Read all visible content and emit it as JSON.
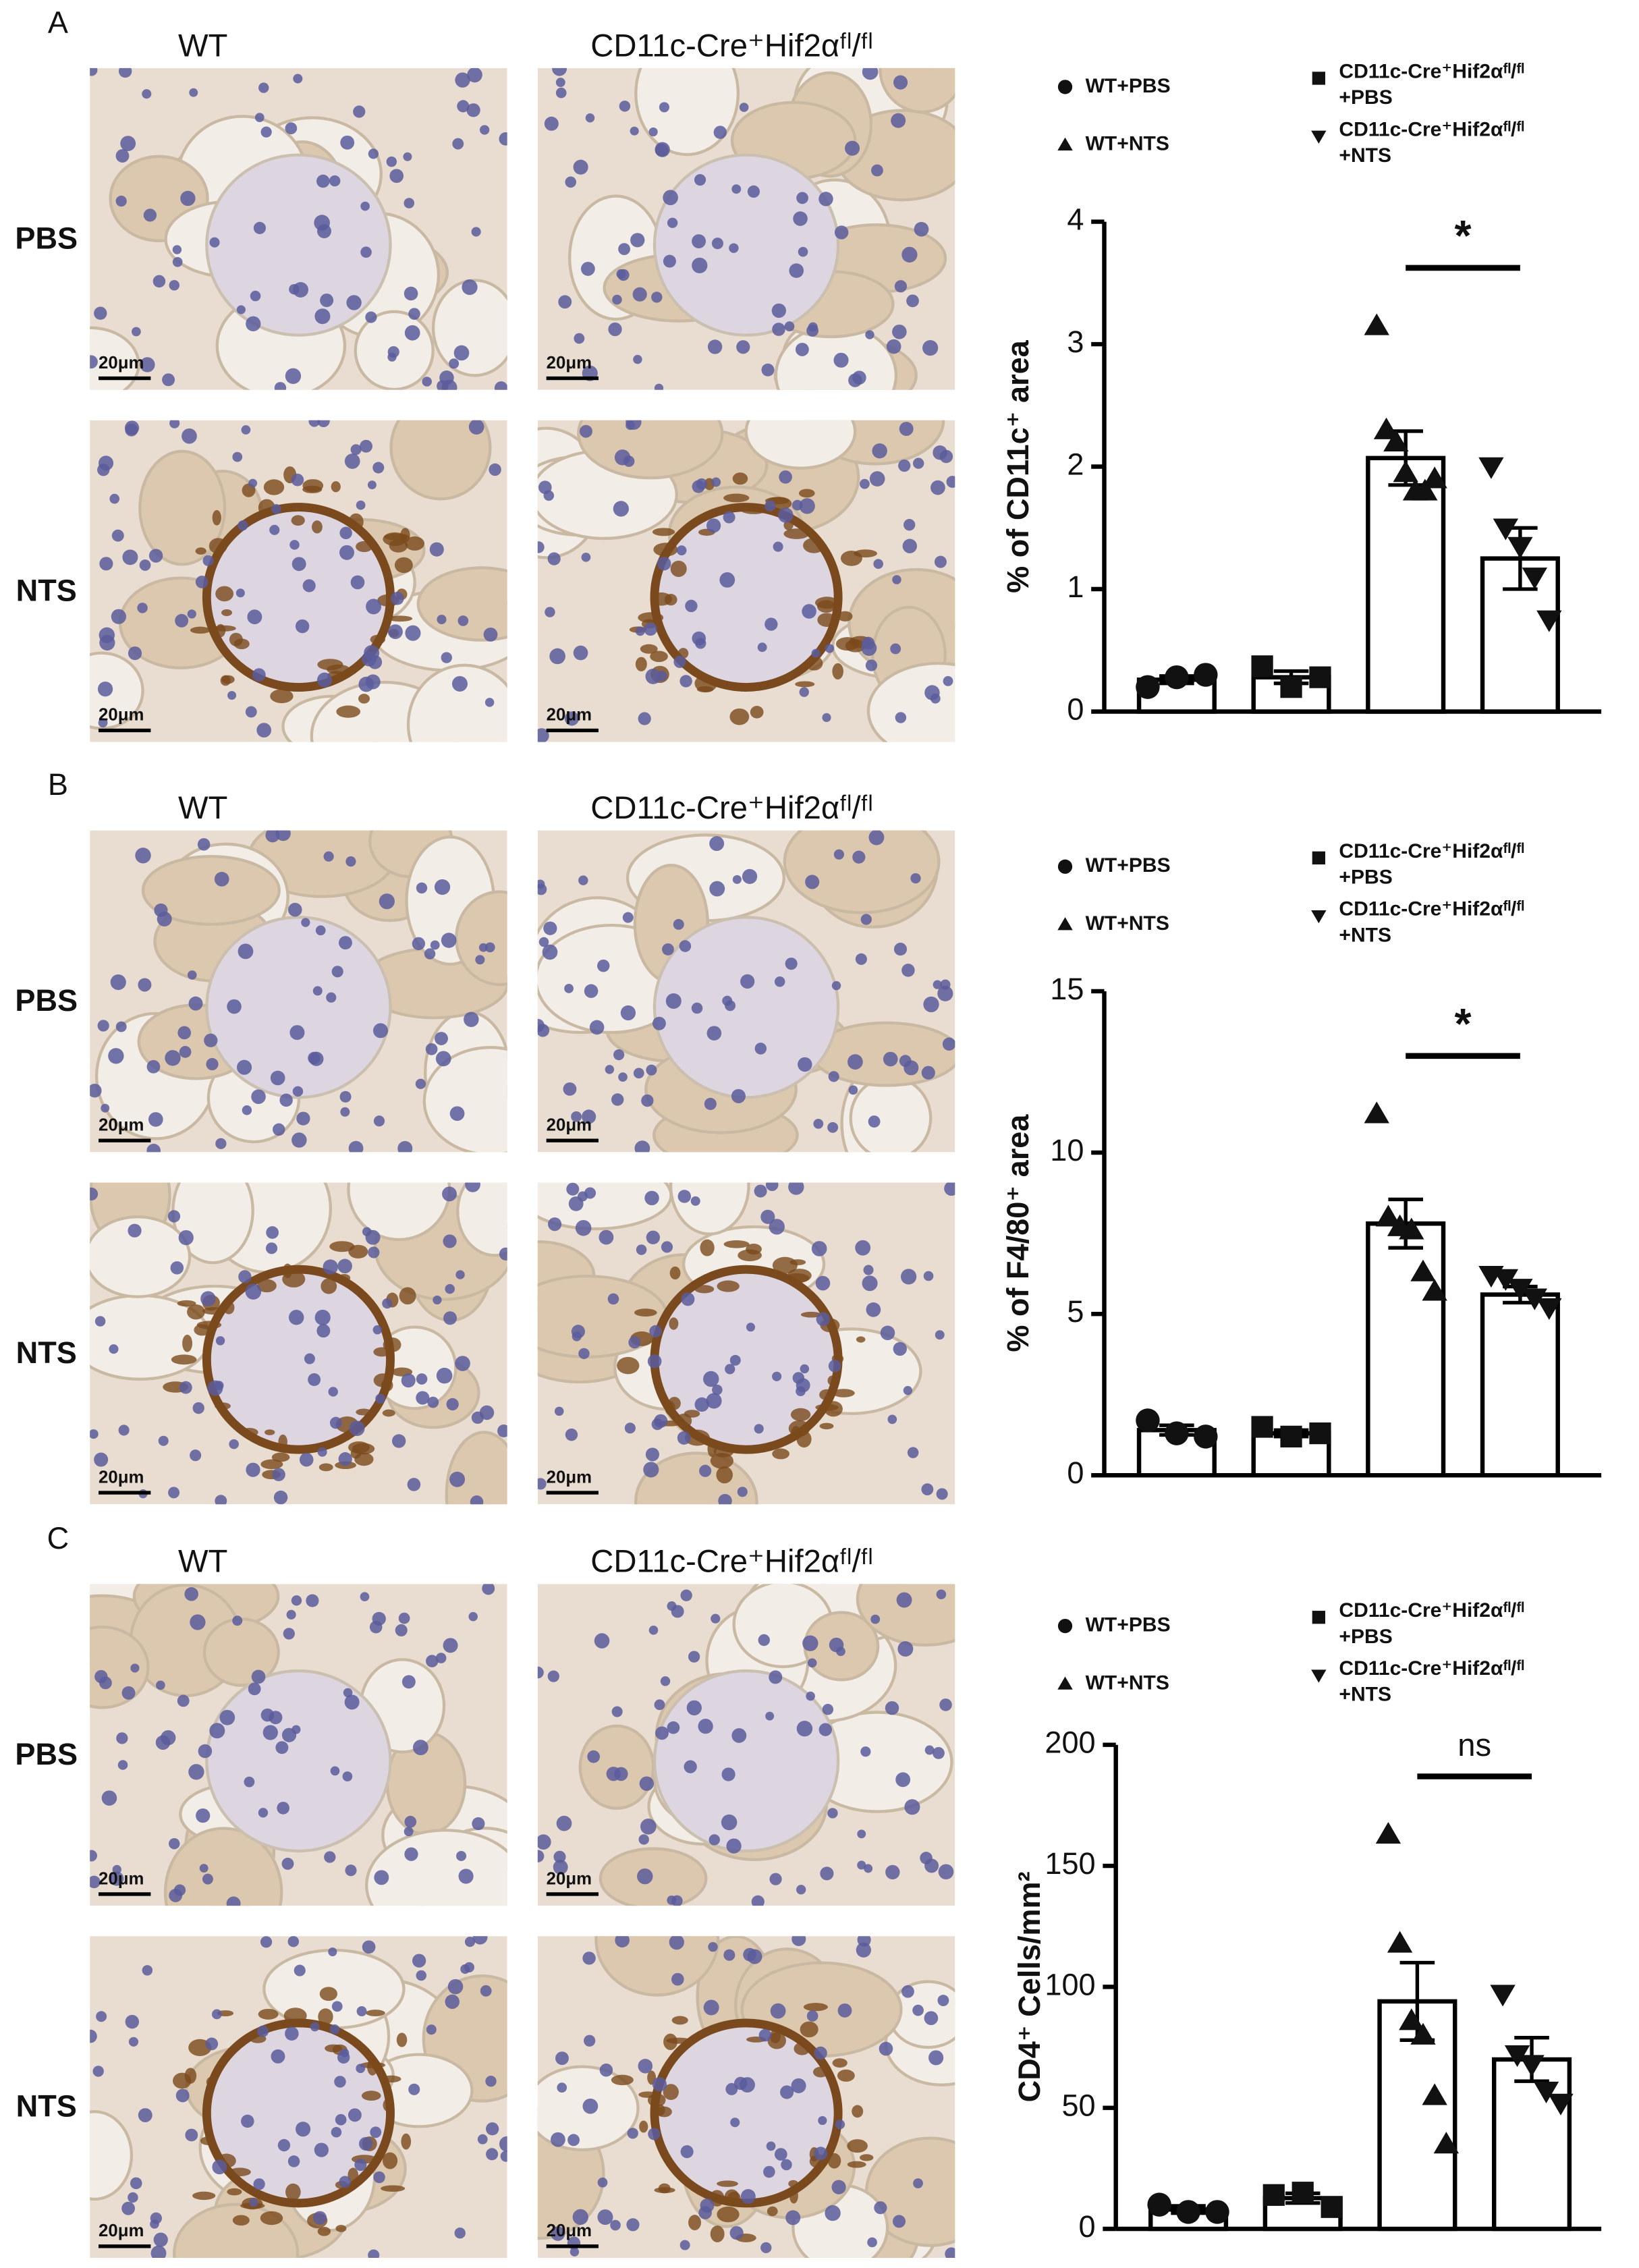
{
  "chart_data": [
    {
      "type": "bar",
      "panel_label": "A",
      "image_columns": [
        "WT",
        "CD11c-Cre⁺Hif2αᶠˡ/ᶠˡ"
      ],
      "image_rows": [
        "PBS",
        "NTS"
      ],
      "scale_bar_label": "20μm",
      "y_label": "% of CD11c⁺ area",
      "ylim": [
        0,
        4
      ],
      "yticks": [
        0,
        1,
        2,
        3,
        4
      ],
      "bar_color": "#ffffff",
      "edge_color": "#000000",
      "annotation": "*",
      "series": [
        {
          "name": "WT+PBS",
          "marker": "circle",
          "value": 0.26,
          "error": 0.03,
          "points": [
            0.2,
            0.28,
            0.3
          ]
        },
        {
          "name": "CD11c-Cre⁺Hif2αᶠˡ/ᶠˡ +PBS",
          "marker": "square",
          "value": 0.28,
          "error": 0.05,
          "points": [
            0.37,
            0.2,
            0.28
          ]
        },
        {
          "name": "WT+NTS",
          "marker": "triangle-up",
          "value": 2.07,
          "error": 0.22,
          "points": [
            3.15,
            2.3,
            2.2,
            1.95,
            1.8,
            1.8,
            1.9
          ]
        },
        {
          "name": "CD11c-Cre⁺Hif2αᶠˡ/ᶠˡ +NTS",
          "marker": "triangle-down",
          "value": 1.25,
          "error": 0.25,
          "points": [
            2.0,
            1.5,
            1.35,
            1.1,
            0.75
          ]
        }
      ]
    },
    {
      "type": "bar",
      "panel_label": "B",
      "image_columns": [
        "WT",
        "CD11c-Cre⁺Hif2αᶠˡ/ᶠˡ"
      ],
      "image_rows": [
        "PBS",
        "NTS"
      ],
      "scale_bar_label": "20μm",
      "y_label": "% of F4/80⁺ area",
      "ylim": [
        0,
        15
      ],
      "yticks": [
        0,
        5,
        10,
        15
      ],
      "bar_color": "#ffffff",
      "edge_color": "#000000",
      "annotation": "*",
      "series": [
        {
          "name": "WT+PBS",
          "marker": "circle",
          "value": 1.4,
          "error": 0.15,
          "points": [
            1.7,
            1.3,
            1.2
          ]
        },
        {
          "name": "CD11c-Cre⁺Hif2αᶠˡ/ᶠˡ +PBS",
          "marker": "square",
          "value": 1.3,
          "error": 0.1,
          "points": [
            1.5,
            1.2,
            1.3
          ]
        },
        {
          "name": "WT+NTS",
          "marker": "triangle-up",
          "value": 7.8,
          "error": 0.75,
          "points": [
            11.2,
            8.0,
            7.7,
            7.6,
            6.3,
            5.7
          ]
        },
        {
          "name": "CD11c-Cre⁺Hif2αᶠˡ/ᶠˡ +NTS",
          "marker": "triangle-down",
          "value": 5.6,
          "error": 0.25,
          "points": [
            6.2,
            6.1,
            5.8,
            5.5,
            5.2
          ]
        }
      ]
    },
    {
      "type": "bar",
      "panel_label": "C",
      "image_columns": [
        "WT",
        "CD11c-Cre⁺Hif2αᶠˡ/ᶠˡ"
      ],
      "image_rows": [
        "PBS",
        "NTS"
      ],
      "scale_bar_label": "20μm",
      "y_label": "CD4⁺ Cells/mm²",
      "ylim": [
        0,
        200
      ],
      "yticks": [
        0,
        50,
        100,
        150,
        200
      ],
      "bar_color": "#ffffff",
      "edge_color": "#000000",
      "annotation": "ns",
      "series": [
        {
          "name": "WT+PBS",
          "marker": "circle",
          "value": 8,
          "error": 1.5,
          "points": [
            10,
            7,
            7
          ]
        },
        {
          "name": "CD11c-Cre⁺Hif2αᶠˡ/ᶠˡ +PBS",
          "marker": "square",
          "value": 12.7,
          "error": 2,
          "points": [
            14,
            15,
            9
          ]
        },
        {
          "name": "WT+NTS",
          "marker": "triangle-up",
          "value": 94,
          "error": 16,
          "points": [
            163,
            118,
            86,
            80,
            55,
            35
          ]
        },
        {
          "name": "CD11c-Cre⁺Hif2αᶠˡ/ᶠˡ +NTS",
          "marker": "triangle-down",
          "value": 70,
          "error": 9,
          "points": [
            97,
            72,
            68,
            57,
            52
          ]
        }
      ]
    }
  ]
}
